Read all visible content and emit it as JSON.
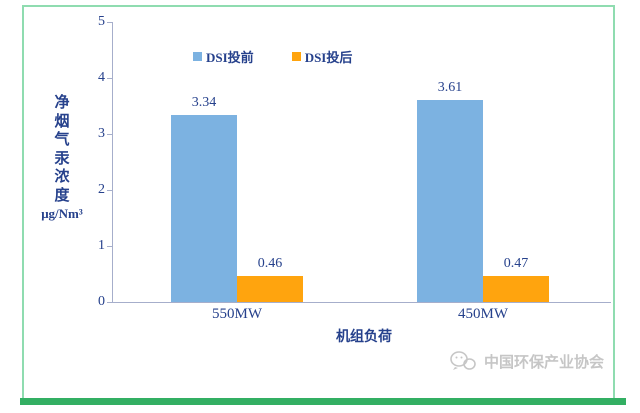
{
  "chart_data": {
    "type": "bar",
    "categories": [
      "550MW",
      "450MW"
    ],
    "series": [
      {
        "name": "DSI投前",
        "color": "#7CB2E1",
        "values": [
          3.34,
          3.61
        ]
      },
      {
        "name": "DSI投后",
        "color": "#FFA40E",
        "values": [
          0.46,
          0.47
        ]
      }
    ],
    "title": "",
    "xlabel": "机组负荷",
    "ylabel": "净烟气汞浓度",
    "ylabel_unit": "μg/Nm³",
    "ylim": [
      0,
      5
    ],
    "yticks": [
      5,
      4,
      3,
      2,
      1,
      0
    ],
    "grid": false,
    "legend_position": "top-center",
    "value_labels_shown": true
  },
  "watermark": {
    "text": "中国环保产业协会",
    "icon": "wechat-logo-icon"
  },
  "frame": {
    "border_color": "#8FDCB0",
    "bottom_bar_color": "#33AF63"
  },
  "colors": {
    "text": "#26418C",
    "axis": "#A6AECB",
    "watermark": "#C6C6C6"
  }
}
